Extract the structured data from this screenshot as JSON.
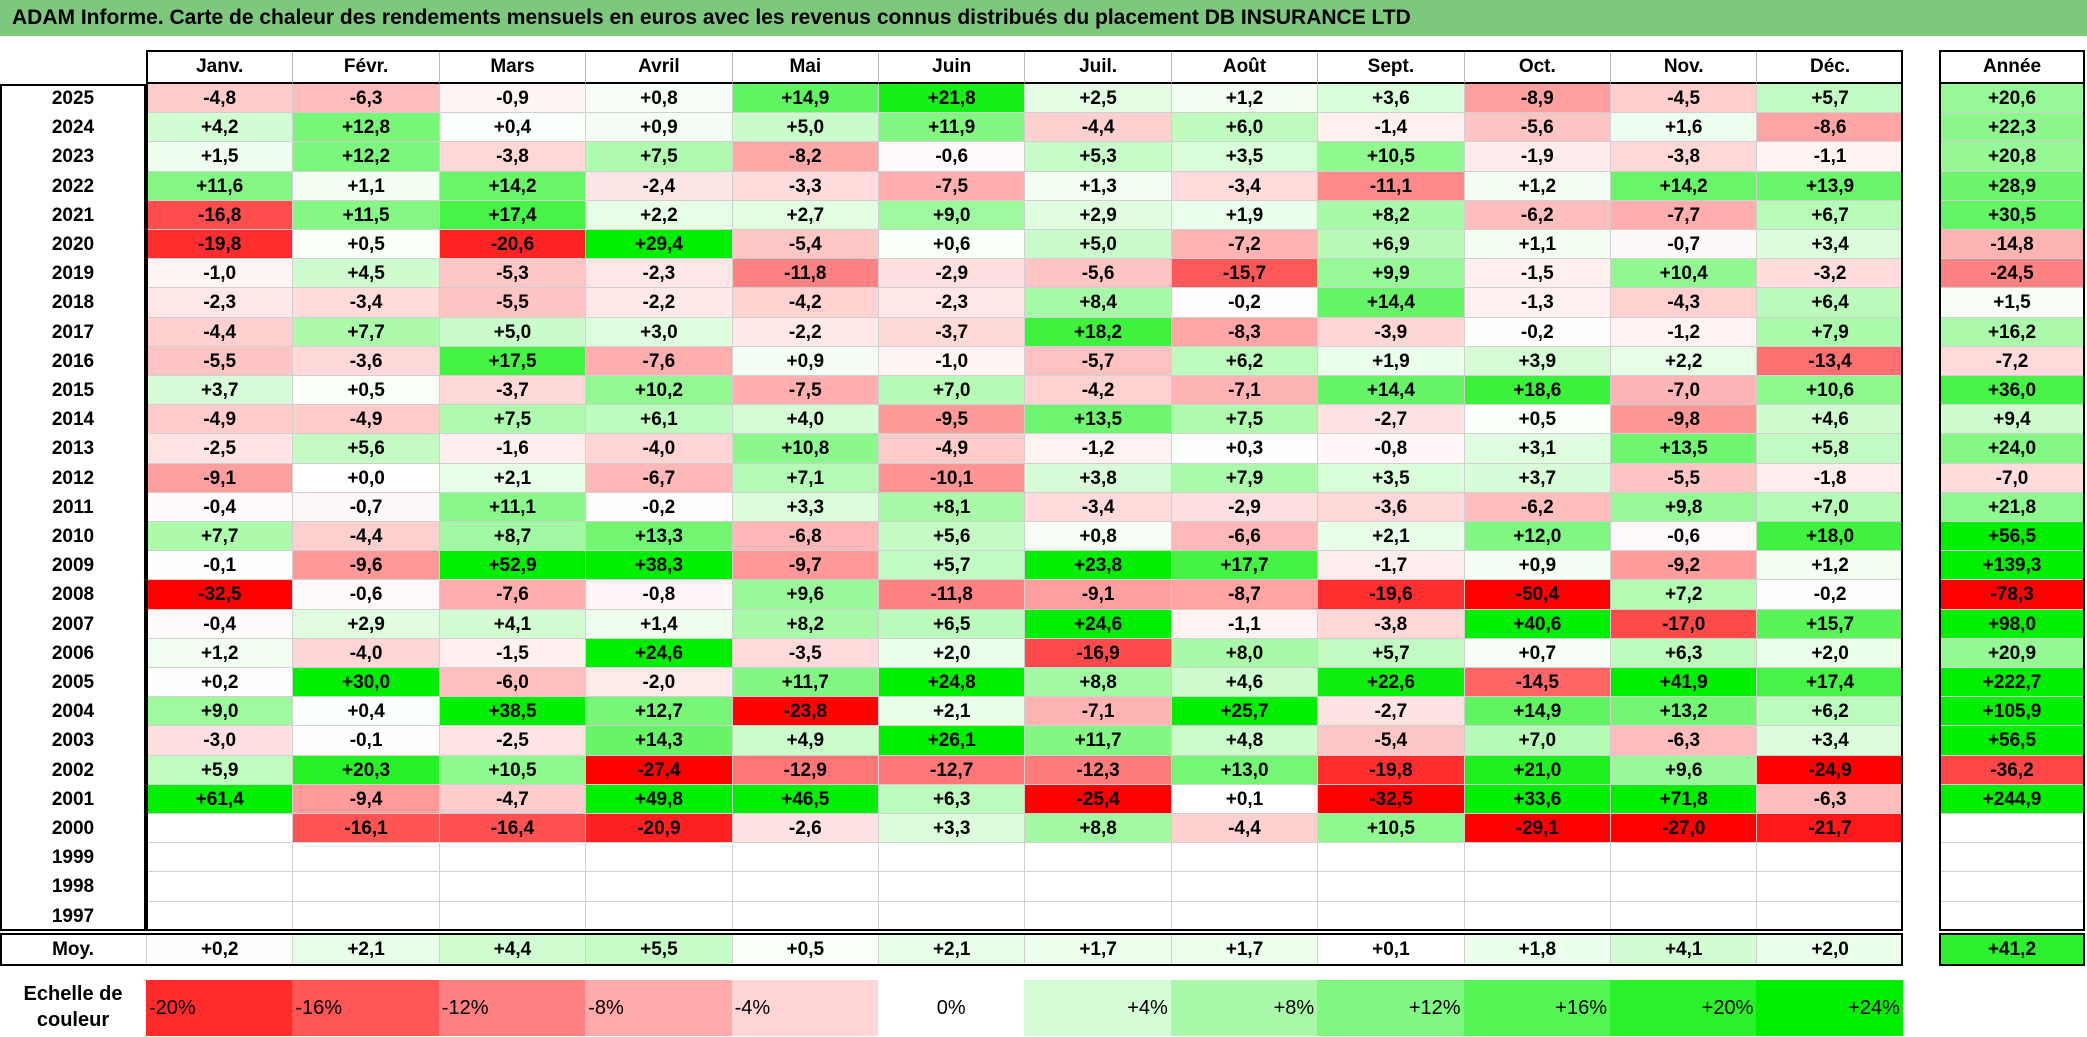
{
  "title": "ADAM Informe. Carte de chaleur des rendements mensuels en euros avec les revenus connus distribués du placement DB INSURANCE LTD",
  "colors": {
    "title_bar": "#7ec87e",
    "negative_max": "#ff0000",
    "positive_max": "#00ee00",
    "neutral": "#ffffff"
  },
  "chart_data": {
    "type": "heatmap",
    "months": [
      "Janv.",
      "Févr.",
      "Mars",
      "Avril",
      "Mai",
      "Juin",
      "Juil.",
      "Août",
      "Sept.",
      "Oct.",
      "Nov.",
      "Déc."
    ],
    "year_column_label": "Année",
    "average_row_label": "Moy.",
    "rows": [
      {
        "year": "2025",
        "values": [
          "-4,8",
          "-6,3",
          "-0,9",
          "+0,8",
          "+14,9",
          "+21,8",
          "+2,5",
          "+1,2",
          "+3,6",
          "-8,9",
          "-4,5",
          "+5,7"
        ],
        "annual": "+20,6"
      },
      {
        "year": "2024",
        "values": [
          "+4,2",
          "+12,8",
          "+0,4",
          "+0,9",
          "+5,0",
          "+11,9",
          "-4,4",
          "+6,0",
          "-1,4",
          "-5,6",
          "+1,6",
          "-8,6"
        ],
        "annual": "+22,3"
      },
      {
        "year": "2023",
        "values": [
          "+1,5",
          "+12,2",
          "-3,8",
          "+7,5",
          "-8,2",
          "-0,6",
          "+5,3",
          "+3,5",
          "+10,5",
          "-1,9",
          "-3,8",
          "-1,1"
        ],
        "annual": "+20,8"
      },
      {
        "year": "2022",
        "values": [
          "+11,6",
          "+1,1",
          "+14,2",
          "-2,4",
          "-3,3",
          "-7,5",
          "+1,3",
          "-3,4",
          "-11,1",
          "+1,2",
          "+14,2",
          "+13,9"
        ],
        "annual": "+28,9"
      },
      {
        "year": "2021",
        "values": [
          "-16,8",
          "+11,5",
          "+17,4",
          "+2,2",
          "+2,7",
          "+9,0",
          "+2,9",
          "+1,9",
          "+8,2",
          "-6,2",
          "-7,7",
          "+6,7"
        ],
        "annual": "+30,5"
      },
      {
        "year": "2020",
        "values": [
          "-19,8",
          "+0,5",
          "-20,6",
          "+29,4",
          "-5,4",
          "+0,6",
          "+5,0",
          "-7,2",
          "+6,9",
          "+1,1",
          "-0,7",
          "+3,4"
        ],
        "annual": "-14,8"
      },
      {
        "year": "2019",
        "values": [
          "-1,0",
          "+4,5",
          "-5,3",
          "-2,3",
          "-11,8",
          "-2,9",
          "-5,6",
          "-15,7",
          "+9,9",
          "-1,5",
          "+10,4",
          "-3,2"
        ],
        "annual": "-24,5"
      },
      {
        "year": "2018",
        "values": [
          "-2,3",
          "-3,4",
          "-5,5",
          "-2,2",
          "-4,2",
          "-2,3",
          "+8,4",
          "-0,2",
          "+14,4",
          "-1,3",
          "-4,3",
          "+6,4"
        ],
        "annual": "+1,5"
      },
      {
        "year": "2017",
        "values": [
          "-4,4",
          "+7,7",
          "+5,0",
          "+3,0",
          "-2,2",
          "-3,7",
          "+18,2",
          "-8,3",
          "-3,9",
          "-0,2",
          "-1,2",
          "+7,9"
        ],
        "annual": "+16,2"
      },
      {
        "year": "2016",
        "values": [
          "-5,5",
          "-3,6",
          "+17,5",
          "-7,6",
          "+0,9",
          "-1,0",
          "-5,7",
          "+6,2",
          "+1,9",
          "+3,9",
          "+2,2",
          "-13,4"
        ],
        "annual": "-7,2"
      },
      {
        "year": "2015",
        "values": [
          "+3,7",
          "+0,5",
          "-3,7",
          "+10,2",
          "-7,5",
          "+7,0",
          "-4,2",
          "-7,1",
          "+14,4",
          "+18,6",
          "-7,0",
          "+10,6"
        ],
        "annual": "+36,0"
      },
      {
        "year": "2014",
        "values": [
          "-4,9",
          "-4,9",
          "+7,5",
          "+6,1",
          "+4,0",
          "-9,5",
          "+13,5",
          "+7,5",
          "-2,7",
          "+0,5",
          "-9,8",
          "+4,6"
        ],
        "annual": "+9,4"
      },
      {
        "year": "2013",
        "values": [
          "-2,5",
          "+5,6",
          "-1,6",
          "-4,0",
          "+10,8",
          "-4,9",
          "-1,2",
          "+0,3",
          "-0,8",
          "+3,1",
          "+13,5",
          "+5,8"
        ],
        "annual": "+24,0"
      },
      {
        "year": "2012",
        "values": [
          "-9,1",
          "+0,0",
          "+2,1",
          "-6,7",
          "+7,1",
          "-10,1",
          "+3,8",
          "+7,9",
          "+3,5",
          "+3,7",
          "-5,5",
          "-1,8"
        ],
        "annual": "-7,0"
      },
      {
        "year": "2011",
        "values": [
          "-0,4",
          "-0,7",
          "+11,1",
          "-0,2",
          "+3,3",
          "+8,1",
          "-3,4",
          "-2,9",
          "-3,6",
          "-6,2",
          "+9,8",
          "+7,0"
        ],
        "annual": "+21,8"
      },
      {
        "year": "2010",
        "values": [
          "+7,7",
          "-4,4",
          "+8,7",
          "+13,3",
          "-6,8",
          "+5,6",
          "+0,8",
          "-6,6",
          "+2,1",
          "+12,0",
          "-0,6",
          "+18,0"
        ],
        "annual": "+56,5"
      },
      {
        "year": "2009",
        "values": [
          "-0,1",
          "-9,6",
          "+52,9",
          "+38,3",
          "-9,7",
          "+5,7",
          "+23,8",
          "+17,7",
          "-1,7",
          "+0,9",
          "-9,2",
          "+1,2"
        ],
        "annual": "+139,3"
      },
      {
        "year": "2008",
        "values": [
          "-32,5",
          "-0,6",
          "-7,6",
          "-0,8",
          "+9,6",
          "-11,8",
          "-9,1",
          "-8,7",
          "-19,6",
          "-50,4",
          "+7,2",
          "-0,2"
        ],
        "annual": "-78,3"
      },
      {
        "year": "2007",
        "values": [
          "-0,4",
          "+2,9",
          "+4,1",
          "+1,4",
          "+8,2",
          "+6,5",
          "+24,6",
          "-1,1",
          "-3,8",
          "+40,6",
          "-17,0",
          "+15,7"
        ],
        "annual": "+98,0"
      },
      {
        "year": "2006",
        "values": [
          "+1,2",
          "-4,0",
          "-1,5",
          "+24,6",
          "-3,5",
          "+2,0",
          "-16,9",
          "+8,0",
          "+5,7",
          "+0,7",
          "+6,3",
          "+2,0"
        ],
        "annual": "+20,9"
      },
      {
        "year": "2005",
        "values": [
          "+0,2",
          "+30,0",
          "-6,0",
          "-2,0",
          "+11,7",
          "+24,8",
          "+8,8",
          "+4,6",
          "+22,6",
          "-14,5",
          "+41,9",
          "+17,4"
        ],
        "annual": "+222,7"
      },
      {
        "year": "2004",
        "values": [
          "+9,0",
          "+0,4",
          "+38,5",
          "+12,7",
          "-23,8",
          "+2,1",
          "-7,1",
          "+25,7",
          "-2,7",
          "+14,9",
          "+13,2",
          "+6,2"
        ],
        "annual": "+105,9"
      },
      {
        "year": "2003",
        "values": [
          "-3,0",
          "-0,1",
          "-2,5",
          "+14,3",
          "+4,9",
          "+26,1",
          "+11,7",
          "+4,8",
          "-5,4",
          "+7,0",
          "-6,3",
          "+3,4"
        ],
        "annual": "+56,5"
      },
      {
        "year": "2002",
        "values": [
          "+5,9",
          "+20,3",
          "+10,5",
          "-27,4",
          "-12,9",
          "-12,7",
          "-12,3",
          "+13,0",
          "-19,8",
          "+21,0",
          "+9,6",
          "-24,9"
        ],
        "annual": "-36,2"
      },
      {
        "year": "2001",
        "values": [
          "+61,4",
          "-9,4",
          "-4,7",
          "+49,8",
          "+46,5",
          "+6,3",
          "-25,4",
          "+0,1",
          "-32,5",
          "+33,6",
          "+71,8",
          "-6,3"
        ],
        "annual": "+244,9"
      },
      {
        "year": "2000",
        "values": [
          "",
          "-16,1",
          "-16,4",
          "-20,9",
          "-2,6",
          "+3,3",
          "+8,8",
          "-4,4",
          "+10,5",
          "-29,1",
          "-27,0",
          "-21,7"
        ],
        "annual": ""
      },
      {
        "year": "1999",
        "values": [
          "",
          "",
          "",
          "",
          "",
          "",
          "",
          "",
          "",
          "",
          "",
          ""
        ],
        "annual": ""
      },
      {
        "year": "1998",
        "values": [
          "",
          "",
          "",
          "",
          "",
          "",
          "",
          "",
          "",
          "",
          "",
          ""
        ],
        "annual": ""
      },
      {
        "year": "1997",
        "values": [
          "",
          "",
          "",
          "",
          "",
          "",
          "",
          "",
          "",
          "",
          "",
          ""
        ],
        "annual": ""
      }
    ],
    "average": {
      "values": [
        "+0,2",
        "+2,1",
        "+4,4",
        "+5,5",
        "+0,5",
        "+2,1",
        "+1,7",
        "+1,7",
        "+0,1",
        "+1,8",
        "+4,1",
        "+2,0"
      ],
      "annual": "+41,2"
    },
    "color_scale": {
      "label": "Echelle de couleur",
      "stops": [
        "-20%",
        "-16%",
        "-12%",
        "-8%",
        "-4%",
        "0%",
        "+4%",
        "+8%",
        "+12%",
        "+16%",
        "+20%",
        "+24%"
      ]
    }
  }
}
